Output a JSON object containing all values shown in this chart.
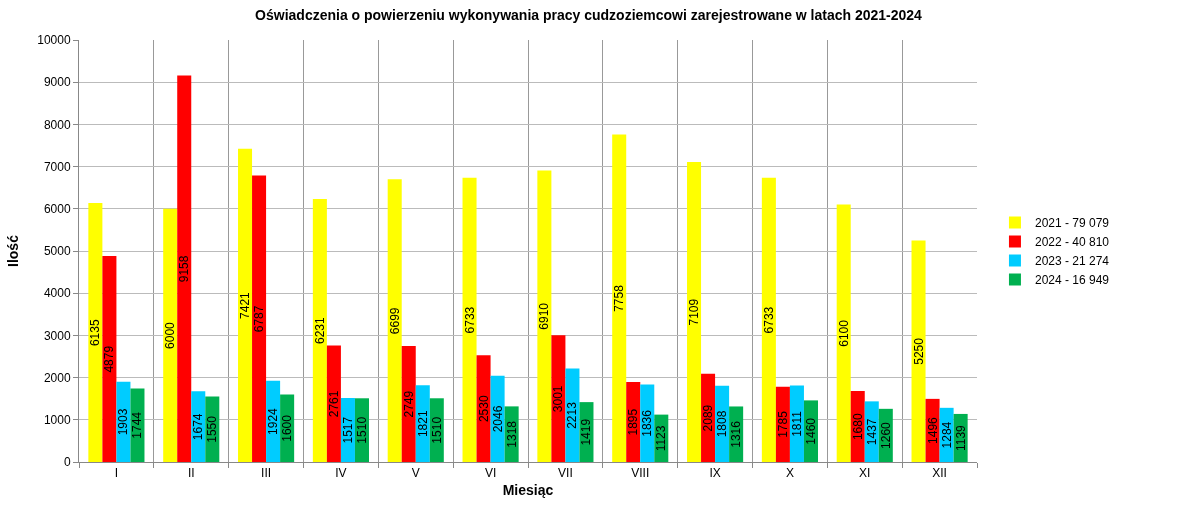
{
  "chart_data": {
    "type": "bar",
    "title": "Oświadczenia o powierzeniu wykonywania pracy cudzoziemcowi zarejestrowane w latach 2021-2024",
    "xlabel": "Miesiąc",
    "ylabel": "Ilość",
    "categories": [
      "I",
      "II",
      "III",
      "IV",
      "V",
      "VI",
      "VII",
      "VIII",
      "IX",
      "X",
      "XI",
      "XII"
    ],
    "series": [
      {
        "name": "2021 - 79 079",
        "color": "#ffff00",
        "values": [
          6135,
          6000,
          7421,
          6231,
          6699,
          6733,
          6910,
          7758,
          7109,
          6733,
          6100,
          5250
        ]
      },
      {
        "name": "2022 - 40 810",
        "color": "#ff0000",
        "values": [
          4879,
          9158,
          6787,
          2761,
          2749,
          2530,
          3001,
          1895,
          2089,
          1785,
          1680,
          1496
        ]
      },
      {
        "name": "2023 - 21 274",
        "color": "#00ccff",
        "values": [
          1903,
          1674,
          1924,
          1517,
          1821,
          2046,
          2213,
          1836,
          1808,
          1811,
          1437,
          1284
        ]
      },
      {
        "name": "2024 - 16 949",
        "color": "#00b050",
        "values": [
          1744,
          1550,
          1600,
          1510,
          1510,
          1318,
          1419,
          1123,
          1316,
          1460,
          1260,
          1139
        ]
      }
    ],
    "ylim": [
      0,
      10000
    ],
    "yticks": [
      0,
      1000,
      2000,
      3000,
      4000,
      5000,
      6000,
      7000,
      8000,
      9000,
      10000
    ],
    "grid": true,
    "legend": "right",
    "data_labels": true
  }
}
